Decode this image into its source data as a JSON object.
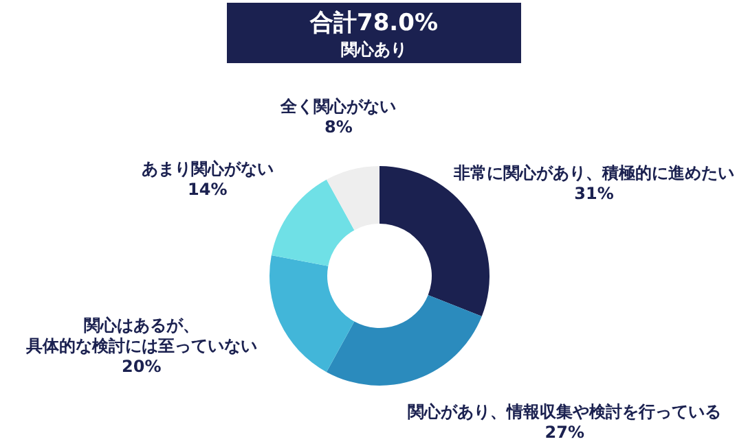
{
  "chart_data": {
    "type": "donut",
    "title": "合計78.0%",
    "subtitle": "関心あり",
    "categories": [
      "非常に関心があり、積極的に進めたい",
      "関心があり、情報収集や検討を行っている",
      "関心はあるが、具体的な検討には至っていない",
      "あまり関心がない",
      "全く関心がない"
    ],
    "values": [
      31,
      27,
      20,
      14,
      8
    ],
    "colors": [
      "#1b2150",
      "#2b8bbd",
      "#42b6d9",
      "#6fe0e6",
      "#eeeeee"
    ],
    "value_labels": [
      "31%",
      "27%",
      "20%",
      "14%",
      "8%"
    ]
  }
}
